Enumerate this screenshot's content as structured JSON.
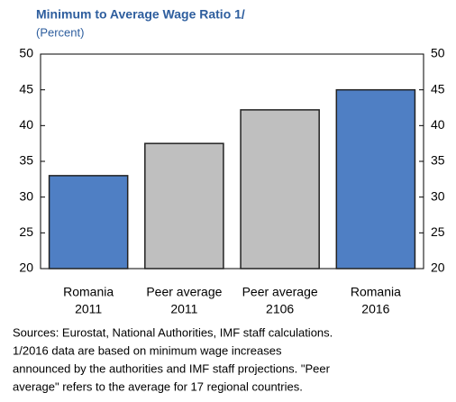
{
  "chart_data": {
    "type": "bar",
    "title": "Minimum to Average Wage Ratio 1/",
    "subtitle": "(Percent)",
    "categories": [
      [
        "Romania",
        "2011"
      ],
      [
        "Peer average",
        "2011"
      ],
      [
        "Peer average",
        "2106"
      ],
      [
        "Romania",
        "2016"
      ]
    ],
    "values": [
      33,
      37.5,
      42.2,
      45
    ],
    "colors": [
      "#4f7fc4",
      "#bfbfbf",
      "#bfbfbf",
      "#4f7fc4"
    ],
    "ylim": [
      20,
      50
    ],
    "yticks": [
      20,
      25,
      30,
      35,
      40,
      45,
      50
    ],
    "y2lim": [
      20,
      50
    ],
    "y2ticks": [
      20,
      25,
      30,
      35,
      40,
      45,
      50
    ],
    "grid": false,
    "notes": [
      "Sources: Eurostat, National Authorities, IMF staff calculations.",
      "1/2016 data are based on minimum wage increases",
      "announced by the authorities and IMF staff projections. \"Peer",
      "average\" refers to the average for 17 regional countries."
    ]
  }
}
